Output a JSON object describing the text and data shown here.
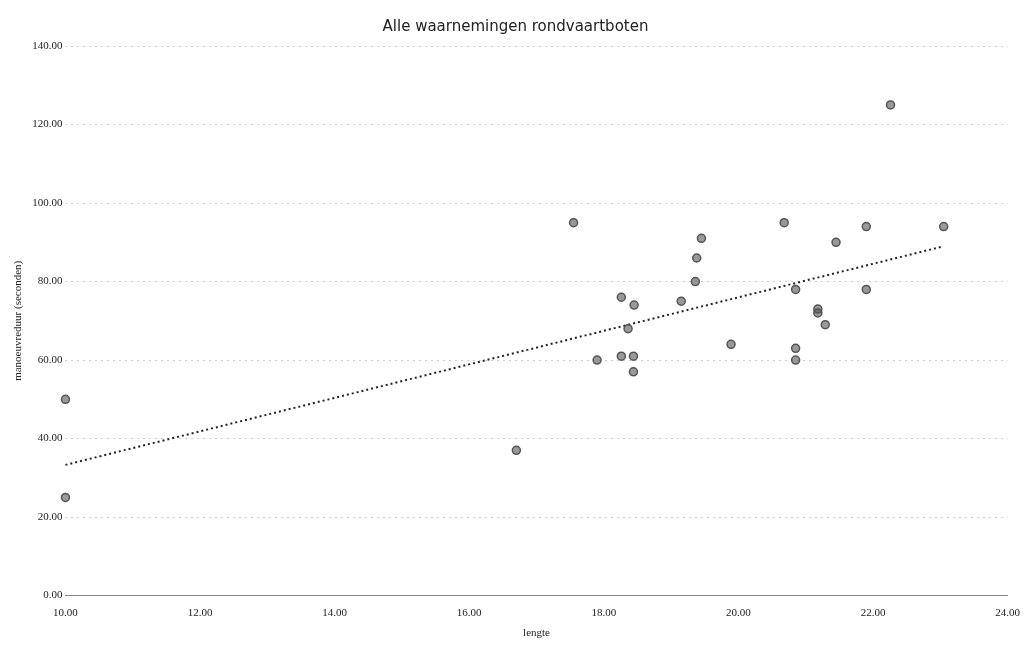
{
  "chart_data": {
    "type": "scatter",
    "title": "Alle waarnemingen rondvaartboten",
    "xlabel": "lengte",
    "ylabel": "manoeuvreduur (seconden)",
    "series": [
      {
        "color": "#555555",
        "marker": "circle",
        "x": [
          10,
          10,
          16.7,
          17.55,
          17.9,
          18.26,
          18.26,
          18.36,
          18.44,
          18.44,
          18.45,
          19.15,
          19.36,
          19.38,
          19.45,
          19.89,
          20.68,
          20.85,
          20.85,
          20.85,
          21.18,
          21.18,
          21.29,
          21.45,
          21.9,
          21.9,
          22.26,
          23.05
        ],
        "values": [
          50,
          25,
          37,
          95,
          60,
          76,
          61,
          68,
          61,
          57,
          74,
          75,
          80,
          86,
          91,
          64,
          95,
          78,
          63,
          60,
          73,
          72,
          69,
          90,
          94,
          78,
          125,
          94
        ]
      },
      {
        "type": "line",
        "color": "#222222",
        "line_style": "dotted",
        "marker": "none",
        "x": [
          10,
          23.05
        ],
        "values": [
          33.3,
          89
        ]
      }
    ],
    "xlim": [
      10,
      24
    ],
    "xticks": [
      {
        "value": 10,
        "label": "10.00"
      },
      {
        "value": 12,
        "label": "12.00"
      },
      {
        "value": 14,
        "label": "14.00"
      },
      {
        "value": 16,
        "label": "16.00"
      },
      {
        "value": 18,
        "label": "18.00"
      },
      {
        "value": 20,
        "label": "20.00"
      },
      {
        "value": 22,
        "label": "22.00"
      },
      {
        "value": 24,
        "label": "24.00"
      }
    ],
    "ylim": [
      0,
      140
    ],
    "yticks": [
      {
        "value": 0,
        "label": "0.00"
      },
      {
        "value": 20,
        "label": "20.00"
      },
      {
        "value": 40,
        "label": "40.00"
      },
      {
        "value": 60,
        "label": "60.00"
      },
      {
        "value": 80,
        "label": "80.00"
      },
      {
        "value": 100,
        "label": "100.00"
      },
      {
        "value": 120,
        "label": "120.00"
      },
      {
        "value": 140,
        "label": "140.00"
      }
    ],
    "grid": "y",
    "legend": false
  }
}
